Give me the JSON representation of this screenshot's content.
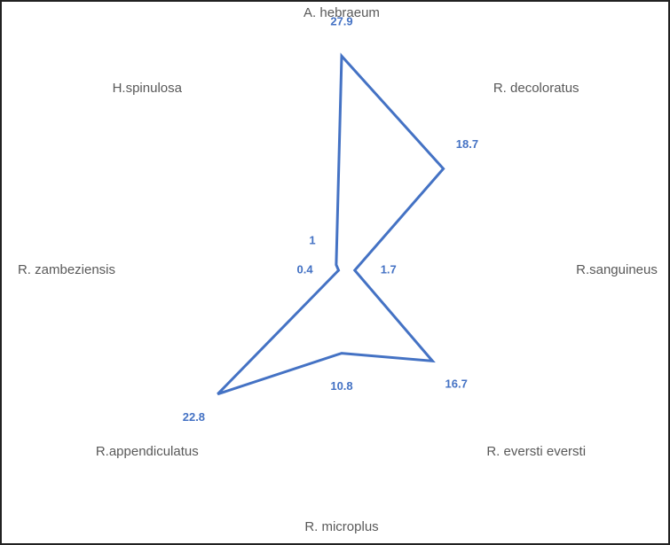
{
  "chart_data": {
    "type": "radar",
    "categories": [
      "A. hebraeum",
      "R. decoloratus",
      "R.sanguineus",
      "R. eversti eversti",
      "R. microplus",
      "R.appendiculatus",
      "R. zambeziensis",
      "H.spinulosa"
    ],
    "values": [
      27.9,
      18.7,
      1.7,
      16.7,
      10.8,
      22.8,
      0.4,
      1
    ],
    "color": "#4472c4",
    "rlim": [
      0,
      30
    ]
  }
}
